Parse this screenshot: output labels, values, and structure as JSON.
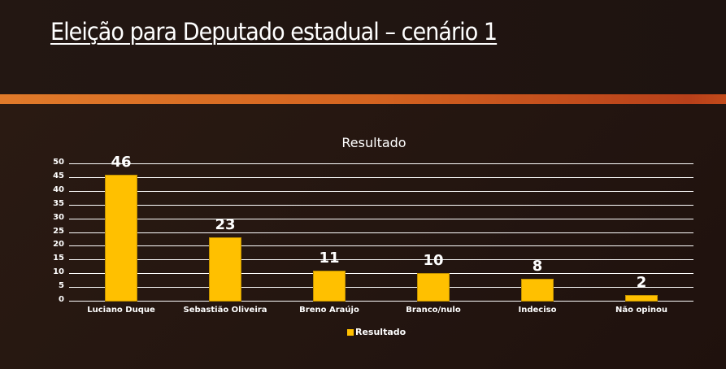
{
  "slide": {
    "title": "Eleição para Deputado estadual – cenário 1",
    "colors": {
      "bar": "#ffc000",
      "band": "#e07a2a",
      "background": "#231510",
      "text": "#ffffff"
    }
  },
  "chart_data": {
    "type": "bar",
    "title": "Resultado",
    "categories": [
      "Luciano Duque",
      "Sebastião Oliveira",
      "Breno Araújo",
      "Branco/nulo",
      "Indeciso",
      "Não opinou"
    ],
    "series": [
      {
        "name": "Resultado",
        "values": [
          46,
          23,
          11,
          10,
          8,
          2
        ]
      }
    ],
    "values": [
      46,
      23,
      11,
      10,
      8,
      2
    ],
    "xlabel": "",
    "ylabel": "",
    "ylim": [
      0,
      50
    ],
    "yticks": [
      0,
      5,
      10,
      15,
      20,
      25,
      30,
      35,
      40,
      45,
      50
    ],
    "grid": true,
    "legend_position": "bottom",
    "data_labels": true
  }
}
